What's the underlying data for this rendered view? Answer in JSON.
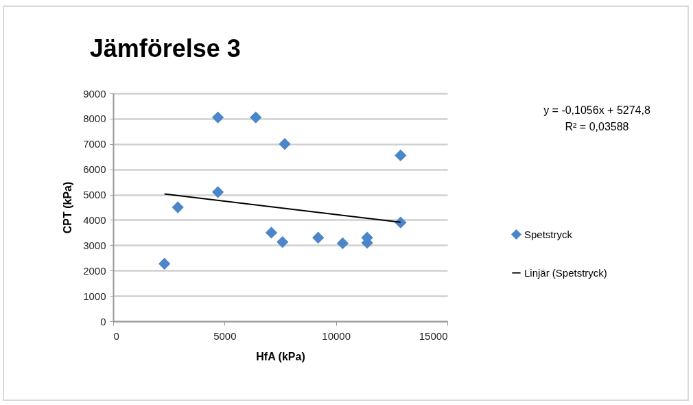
{
  "chart_data": {
    "type": "scatter",
    "title": "Jämförelse 3",
    "xlabel": "HfA (kPa)",
    "ylabel": "CPT (kPa)",
    "xlim": [
      0,
      15000
    ],
    "xticks": [
      0,
      5000,
      10000,
      15000
    ],
    "ylim": [
      0,
      9000
    ],
    "yticks": [
      0,
      1000,
      2000,
      3000,
      4000,
      5000,
      6000,
      7000,
      8000,
      9000
    ],
    "grid": "y",
    "legend": "right",
    "annotations": [
      "y = -0,1056x + 5274,8",
      "R² = 0,03588"
    ],
    "series": [
      {
        "name": "Spetstryck",
        "marker": "diamond",
        "color": "#4a86c8",
        "x": [
          2300,
          2900,
          4700,
          4700,
          6400,
          7700,
          7100,
          7600,
          9200,
          10300,
          11400,
          11400,
          12900,
          12900
        ],
        "values": [
          2270,
          4500,
          8050,
          5100,
          8050,
          7000,
          3500,
          3130,
          3300,
          3080,
          3300,
          3100,
          6550,
          3900
        ]
      },
      {
        "name": "Linjär (Spetstryck)",
        "type": "line",
        "color": "#000000",
        "x": [
          2300,
          12900
        ],
        "values": [
          5030,
          3910
        ]
      }
    ]
  }
}
